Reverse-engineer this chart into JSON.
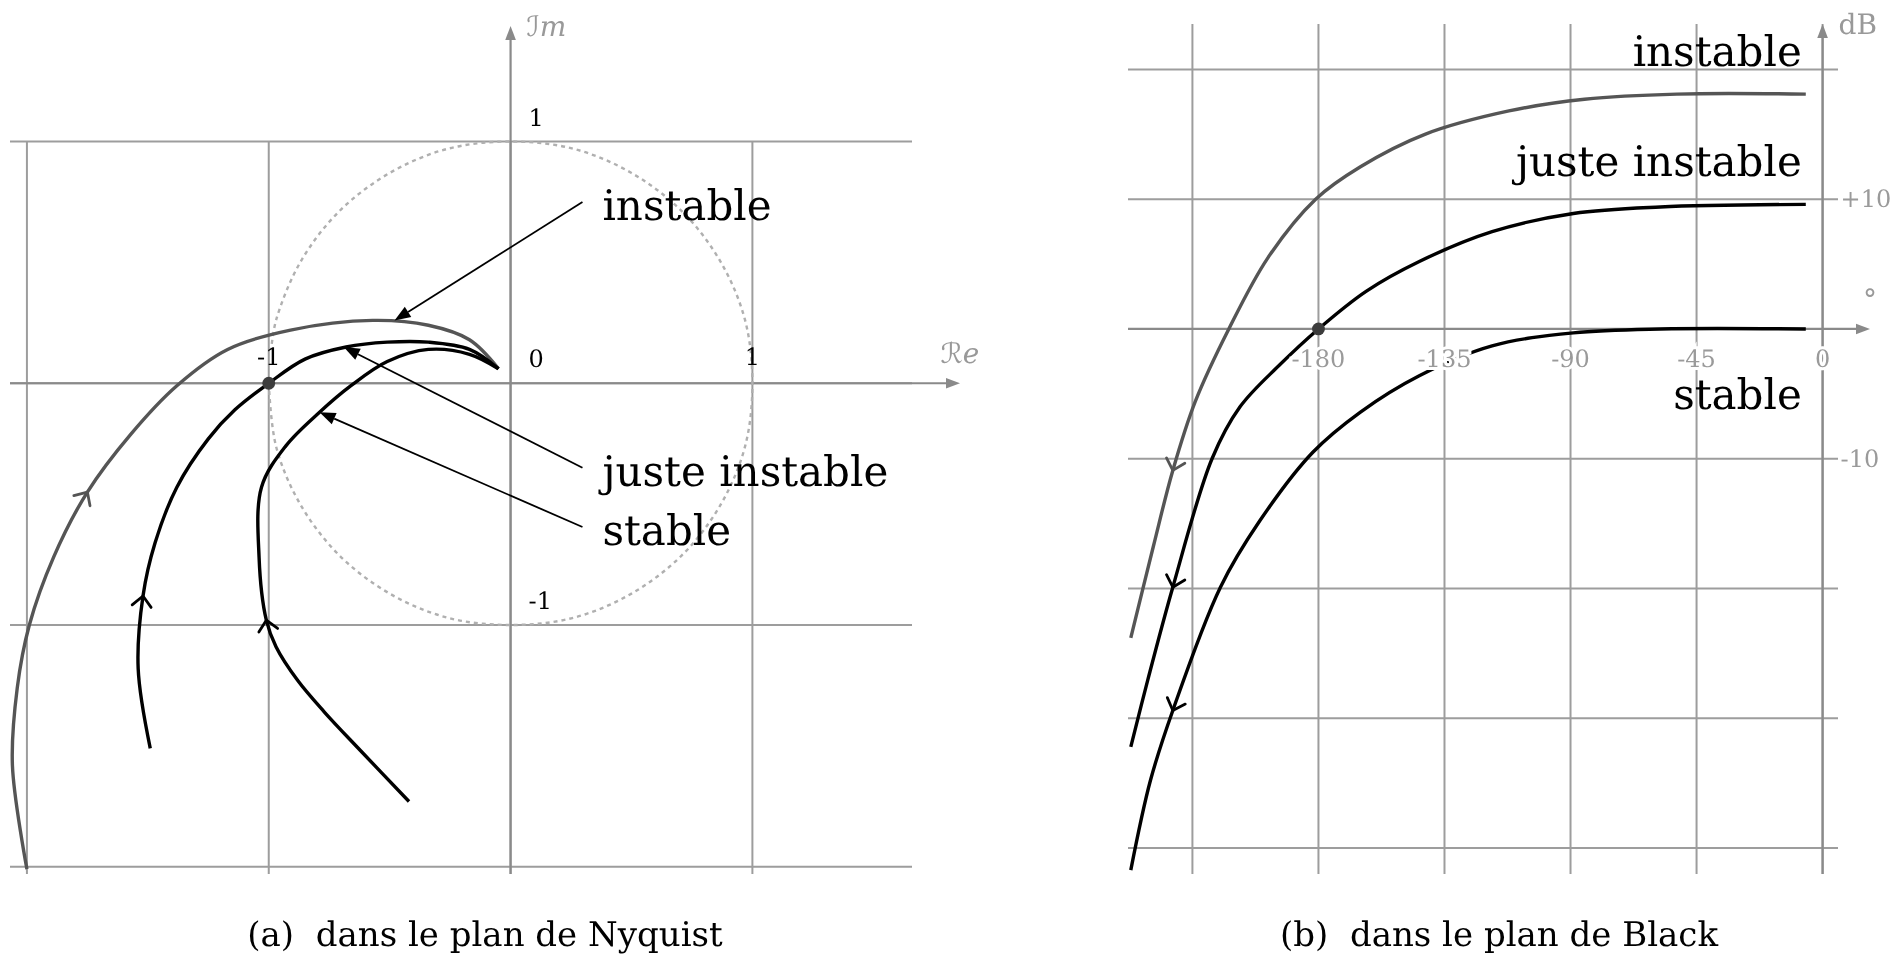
{
  "chart_data": [
    {
      "type": "line",
      "title": "(a)  dans le plan de Nyquist",
      "xlabel": "ℛe",
      "ylabel": "ℐm",
      "xlim": [
        -2.07,
        1.66
      ],
      "ylim": [
        -2.03,
        1.42
      ],
      "xticks": [
        {
          "value": -2,
          "label": null
        },
        -1,
        {
          "value": 0,
          "label": null
        },
        1
      ],
      "yticks": [
        {
          "value": -2,
          "label": null
        },
        -1,
        0,
        1
      ],
      "grid": true,
      "marker": "none",
      "series": [
        {
          "color": "#b0b0b0",
          "line_style": "dotted",
          "x": [
            -1,
            -0.97,
            -0.87,
            -0.71,
            -0.5,
            -0.26,
            0,
            0.26,
            0.5,
            0.71,
            0.87,
            0.97,
            1,
            0.97,
            0.87,
            0.71,
            0.5,
            0.26,
            0,
            -0.26,
            -0.5,
            -0.71,
            -0.87,
            -0.97,
            -0.99
          ],
          "values": [
            0,
            -0.26,
            -0.5,
            -0.71,
            -0.87,
            -0.97,
            -1,
            -0.97,
            -0.87,
            -0.71,
            -0.5,
            -0.26,
            0,
            0.26,
            0.5,
            0.71,
            0.87,
            0.97,
            1,
            0.97,
            0.87,
            0.71,
            0.5,
            0.26,
            0.14
          ]
        },
        {
          "color": "#555555",
          "x": [
            -2,
            -2.06,
            -2.04,
            -1.99,
            -1.89,
            -1.75,
            -1.57,
            -1.38,
            -1.17,
            -0.91,
            -0.57,
            -0.34,
            -0.17,
            -0.05
          ],
          "values": [
            -2.01,
            -1.58,
            -1.26,
            -1,
            -0.72,
            -0.45,
            -0.21,
            -0.01,
            0.14,
            0.22,
            0.26,
            0.24,
            0.18,
            0.06
          ]
        },
        {
          "color": "#000000",
          "x": [
            -1.49,
            -1.54,
            -1.52,
            -1.47,
            -1.38,
            -1.25,
            -1.14,
            -1,
            -0.85,
            -0.68,
            -0.51,
            -0.34,
            -0.17,
            -0.05
          ],
          "values": [
            -1.51,
            -1.18,
            -0.88,
            -0.66,
            -0.43,
            -0.23,
            -0.11,
            0,
            0.1,
            0.15,
            0.17,
            0.17,
            0.14,
            0.06
          ]
        },
        {
          "color": "#000000",
          "x": [
            -0.42,
            -0.62,
            -0.77,
            -0.88,
            -0.97,
            -1.01,
            -1.04,
            -1.03,
            -0.93,
            -0.79,
            -0.66,
            -0.51,
            -0.34,
            -0.17,
            -0.05
          ],
          "values": [
            -1.73,
            -1.52,
            -1.36,
            -1.23,
            -1.09,
            -0.98,
            -0.72,
            -0.43,
            -0.26,
            -0.12,
            -0.01,
            0.09,
            0.14,
            0.12,
            0.06
          ]
        },
        {
          "type": "scatter",
          "marker": "circle",
          "color": "#3c3c3c",
          "x": [
            -1
          ],
          "values": [
            0
          ]
        }
      ],
      "annotations": [
        {
          "text": "instable",
          "x": -0.48,
          "y": 0.26
        },
        {
          "text": "juste instable",
          "x": -0.69,
          "y": 0.15
        },
        {
          "text": "stable",
          "x": -0.79,
          "y": -0.12
        }
      ]
    },
    {
      "type": "line",
      "title": "(b)  dans le plan de Black",
      "xlabel": "°",
      "ylabel": "dB",
      "xlim": [
        -248,
        5.5
      ],
      "ylim": [
        -42,
        23.5
      ],
      "xticks": [
        {
          "value": -225,
          "label": null
        },
        -180,
        -135,
        -90,
        -45,
        0
      ],
      "yticks": [
        {
          "value": -40,
          "label": null
        },
        {
          "value": -30,
          "label": null
        },
        {
          "value": -20,
          "label": null
        },
        -10,
        {
          "value": 0,
          "label": null
        },
        {
          "value": 10,
          "label": "+10"
        },
        {
          "value": 20,
          "label": null
        }
      ],
      "grid": true,
      "marker": "none",
      "series": [
        {
          "name": "instable",
          "color": "#555555",
          "x": [
            -247,
            -239,
            -232,
            -224,
            -212,
            -198,
            -181,
            -165,
            -142,
            -112,
            -85,
            -52,
            -6
          ],
          "values": [
            -23.8,
            -16.8,
            -10.9,
            -5.6,
            0,
            5.5,
            10,
            12.5,
            15,
            16.8,
            17.7,
            18.1,
            18.1
          ]
        },
        {
          "name": "juste instable",
          "color": "#000000",
          "x": [
            -247,
            -241,
            -232,
            -218,
            -208,
            -194,
            -180,
            -163,
            -144,
            -118,
            -89,
            -58,
            -6
          ],
          "values": [
            -32.2,
            -27.1,
            -19.9,
            -10,
            -6,
            -2.8,
            0,
            2.9,
            5.2,
            7.5,
            8.9,
            9.4,
            9.6
          ]
        },
        {
          "name": "stable",
          "color": "#000000",
          "x": [
            -247,
            -240,
            -232,
            -215,
            -201,
            -182,
            -165,
            -144,
            -118,
            -89,
            -58,
            -6
          ],
          "values": [
            -41.7,
            -34.8,
            -29.4,
            -19.9,
            -14.8,
            -9.5,
            -6.4,
            -3.6,
            -1.3,
            -0.3,
            0,
            0
          ]
        },
        {
          "type": "scatter",
          "marker": "circle",
          "color": "#3c3c3c",
          "x": [
            -180
          ],
          "values": [
            0
          ]
        }
      ]
    }
  ]
}
